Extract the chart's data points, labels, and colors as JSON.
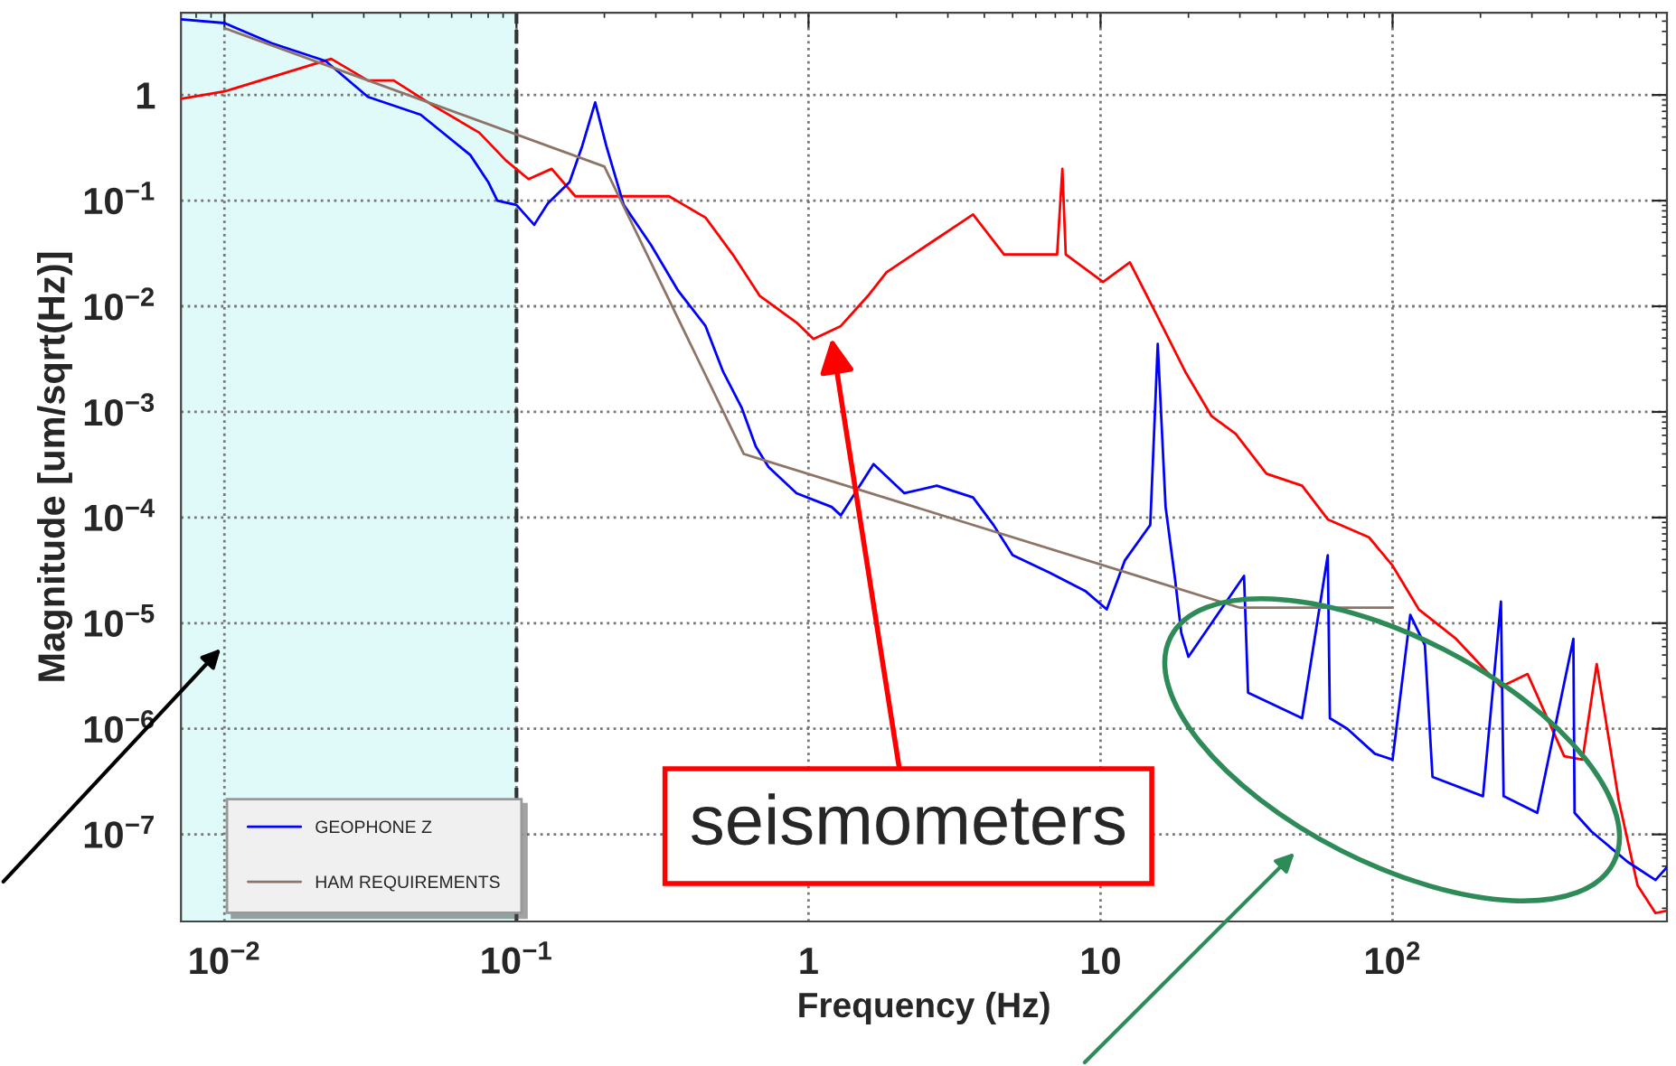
{
  "chart_data": {
    "type": "line",
    "xlabel": "Frequency (Hz)",
    "ylabel": "Magnitude [um/sqrt(Hz)]",
    "log": "xy",
    "grid": true,
    "legend": "bottom left",
    "xlim": [
      0.0071,
      870
    ],
    "ylim": [
      1.5e-08,
      6
    ],
    "xticks": [
      {
        "value": 0.01,
        "label": "10$^{−2}$"
      },
      {
        "value": 0.1,
        "label": "10$^{−1}$"
      },
      1,
      10,
      {
        "value": 100,
        "label": "10$^{2}$"
      }
    ],
    "yticks": [
      {
        "value": 1e-07,
        "label": "10$^{−7}$"
      },
      {
        "value": 1e-06,
        "label": "10$^{−6}$"
      },
      {
        "value": 1e-05,
        "label": "10$^{−5}$"
      },
      {
        "value": 0.0001,
        "label": "10$^{−4}$"
      },
      {
        "value": 0.001,
        "label": "10$^{−3}$"
      },
      {
        "value": 0.01,
        "label": "10$^{−2}$"
      },
      {
        "value": 0.1,
        "label": "10$^{−1}$"
      },
      1
    ],
    "bands": [
      {
        "axis": "x",
        "from": 0.0071,
        "to": 0.1,
        "color": "#e0fafa"
      }
    ],
    "ref_lines": [
      {
        "axis": "x",
        "value": 0.1,
        "color": "#333333",
        "line_style": "dashed"
      }
    ],
    "annotations": [
      {
        "text": "seismometers",
        "x": 1.2,
        "y": 0.005
      }
    ],
    "series": [
      {
        "color": "#ff0000",
        "x": [
          0.0071,
          0.01,
          0.0232,
          0.031,
          0.038,
          0.052,
          0.0746,
          0.092,
          0.11,
          0.132,
          0.159,
          0.233,
          0.333,
          0.444,
          0.55,
          0.68,
          0.91,
          1.04,
          1.29,
          1.6,
          1.85,
          2.83,
          3.66,
          4.67,
          7.1,
          7.4,
          7.6,
          10.2,
          12.6,
          15.7,
          19.5,
          24,
          29,
          37,
          49,
          60,
          83,
          100,
          123,
          165,
          235,
          290,
          387,
          447,
          500,
          595,
          690,
          795,
          870
        ],
        "values": [
          0.92,
          1.08,
          2.2,
          1.37,
          1.37,
          0.79,
          0.44,
          0.24,
          0.16,
          0.2,
          0.11,
          0.11,
          0.11,
          0.069,
          0.031,
          0.0126,
          0.007,
          0.0049,
          0.0065,
          0.0126,
          0.021,
          0.046,
          0.074,
          0.031,
          0.031,
          0.2,
          0.031,
          0.017,
          0.026,
          0.0079,
          0.0024,
          0.00091,
          0.00062,
          0.00026,
          0.0002,
          9.6e-05,
          6.5e-05,
          3.5e-05,
          1.35e-05,
          7.1e-06,
          2.5e-06,
          3.3e-06,
          5.5e-07,
          5.1e-07,
          4.1e-06,
          2.1e-07,
          3.3e-08,
          1.8e-08,
          1.9e-08
        ]
      },
      {
        "name": "GEOPHONE Z",
        "color": "#0000ff",
        "x": [
          0.0071,
          0.01,
          0.0145,
          0.0222,
          0.031,
          0.047,
          0.0695,
          0.08,
          0.086,
          0.1,
          0.115,
          0.128,
          0.152,
          0.168,
          0.186,
          0.203,
          0.233,
          0.289,
          0.358,
          0.444,
          0.51,
          0.59,
          0.66,
          0.73,
          0.91,
          1.2,
          1.29,
          1.67,
          2.13,
          2.75,
          3.66,
          4.3,
          5.0,
          6.7,
          8.9,
          10.5,
          12.1,
          14.8,
          15.7,
          16.7,
          18,
          18.9,
          20,
          31,
          32,
          49,
          60,
          61,
          70,
          87,
          100,
          115,
          129,
          137,
          204,
          235,
          240,
          313,
          416,
          420,
          479,
          638,
          795,
          870
        ],
        "values": [
          5.2,
          4.8,
          3.1,
          2.1,
          0.96,
          0.65,
          0.27,
          0.15,
          0.1,
          0.091,
          0.059,
          0.094,
          0.15,
          0.33,
          0.85,
          0.33,
          0.091,
          0.038,
          0.014,
          0.0065,
          0.0024,
          0.0011,
          0.00047,
          0.0003,
          0.00017,
          0.000126,
          0.000105,
          0.00032,
          0.00017,
          0.0002,
          0.000155,
          8.5e-05,
          4.4e-05,
          3e-05,
          2e-05,
          1.35e-05,
          3.9e-05,
          8.5e-05,
          0.0044,
          0.000126,
          2.6e-05,
          8.1e-06,
          4.8e-06,
          2.8e-05,
          2.2e-06,
          1.26e-06,
          4.4e-05,
          1.26e-06,
          1e-06,
          5.8e-07,
          5.1e-07,
          1.2e-05,
          6.2e-06,
          3.5e-07,
          2.3e-07,
          1.6e-05,
          2.3e-07,
          1.6e-07,
          7.1e-06,
          1.6e-07,
          1.07e-07,
          5.5e-08,
          3.7e-08,
          4.9e-08
        ]
      },
      {
        "name": "HAM REQUIREMENTS",
        "color": "#8d7467",
        "x": [
          0.01,
          0.2,
          0.6,
          30,
          100
        ],
        "values": [
          4.3,
          0.21,
          0.0004,
          1.4e-05,
          1.4e-05
        ]
      }
    ]
  }
}
